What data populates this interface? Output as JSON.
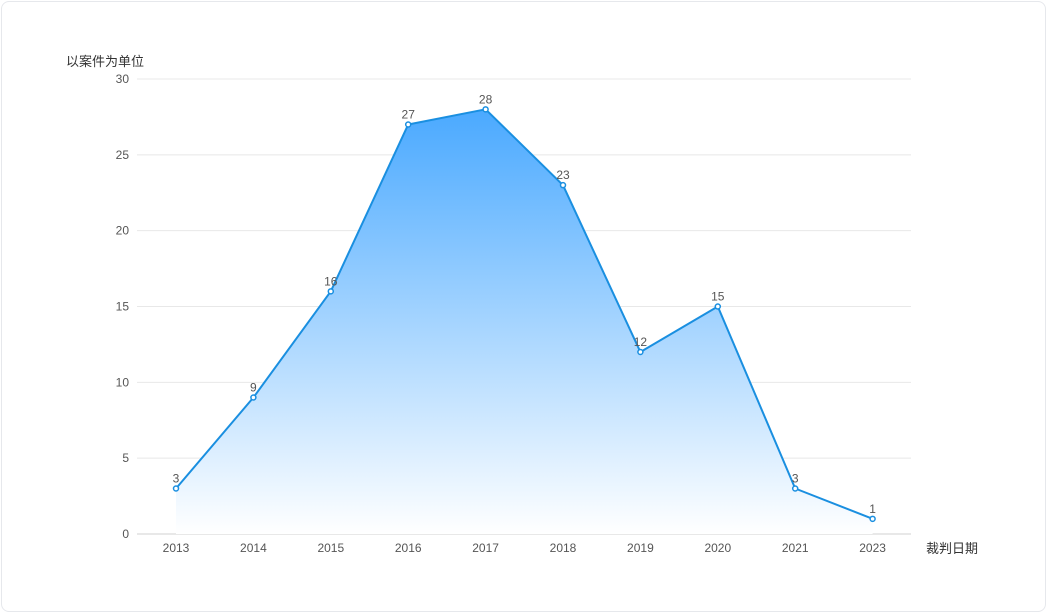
{
  "chart_data": {
    "type": "area",
    "categories": [
      "2013",
      "2014",
      "2015",
      "2016",
      "2017",
      "2018",
      "2019",
      "2020",
      "2021",
      "2023"
    ],
    "series": [
      {
        "values": [
          3,
          9,
          16,
          27,
          28,
          23,
          12,
          15,
          3,
          1
        ]
      }
    ],
    "ylabel": "以案件为单位",
    "xlabel": "裁判日期",
    "ylim": [
      0,
      30
    ],
    "yticks": [
      0,
      5,
      10,
      15,
      20,
      25,
      30
    ],
    "grid": true,
    "show_data_labels": true,
    "colors": {
      "line": "#1a8fe0",
      "area_top": "#4aa9ff",
      "area_bottom": "#ffffff",
      "grid": "#e8e8e8",
      "axis": "#d0d0d0"
    }
  }
}
